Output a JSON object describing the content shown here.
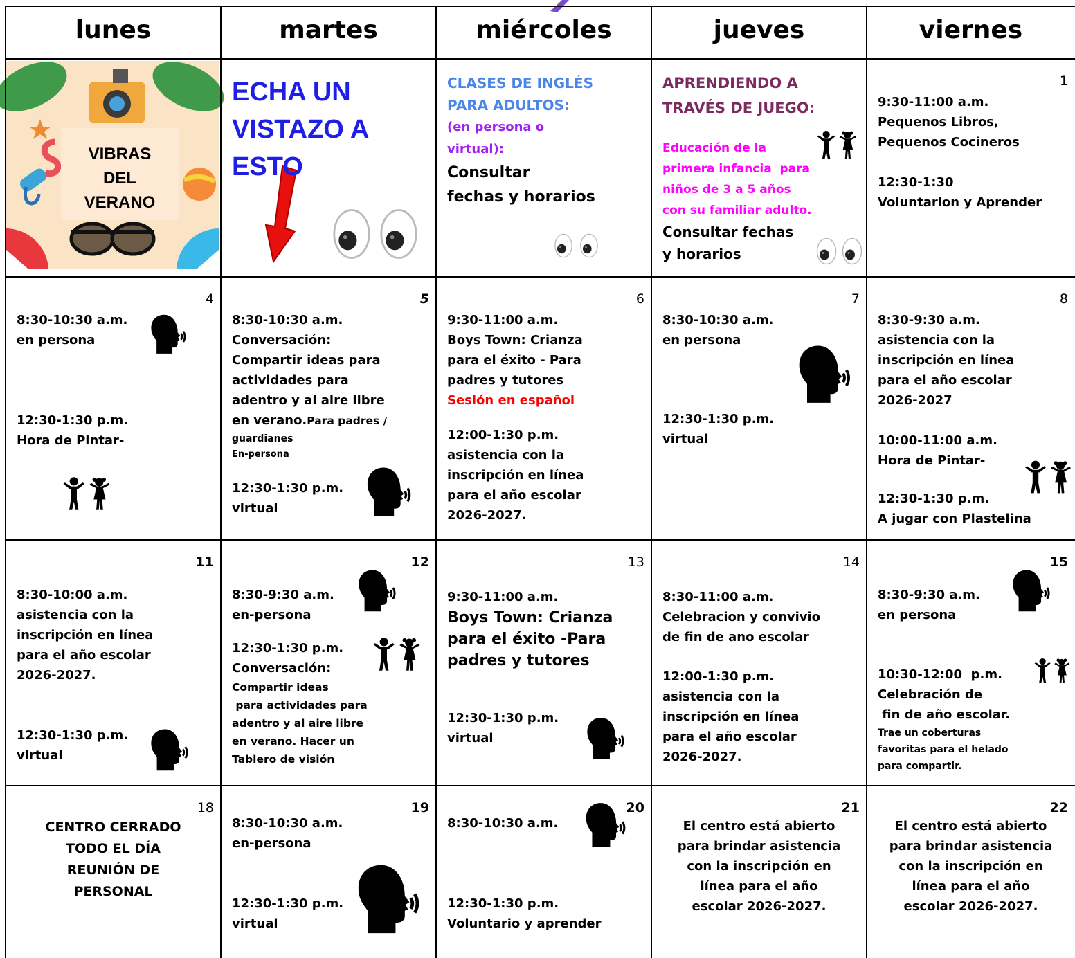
{
  "header": [
    "lunes",
    "martes",
    "miércoles",
    "jueves",
    "viernes"
  ],
  "weeks": [
    [
      {
        "lines": [
          "VIBRAS",
          "DEL",
          "VERANO"
        ]
      },
      {
        "lines": [
          "ECHA UN",
          "VISTAZO A",
          "ESTO"
        ]
      },
      {
        "lines": [
          "CLASES DE INGLÉS",
          "PARA ADULTOS:",
          "(en persona o",
          "virtual):",
          "Consultar",
          "fechas y horarios"
        ]
      },
      {
        "lines": [
          "APRENDIENDO A",
          "TRAVÉS DE JUEGO:",
          "Educación de la",
          "primera infancia  para",
          "niños de 3 a 5 años",
          "con su familiar adulto.",
          "Consultar fechas",
          "y horarios"
        ]
      },
      {
        "day": 1,
        "lines": [
          "9:30-11:00 a.m.",
          "Pequenos Libros,",
          "Pequenos Cocineros",
          "12:30-1:30",
          "Voluntarion y Aprender"
        ]
      }
    ],
    [
      {
        "day": 4,
        "lines": [
          "8:30-10:30 a.m.",
          "en persona",
          "12:30-1:30 p.m.",
          "Hora de Pintar-"
        ]
      },
      {
        "day": 5,
        "lines": [
          "8:30-10:30 a.m.",
          "Conversación:",
          "Compartir ideas para",
          "actividades para",
          "adentro y al aire libre",
          "en verano.",
          "Para padres /",
          "guardianes",
          "En-persona",
          "12:30-1:30 p.m.",
          "virtual"
        ]
      },
      {
        "day": 6,
        "lines": [
          "9:30-11:00 a.m.",
          "Boys Town: Crianza",
          "para el éxito - Para",
          "padres y tutores",
          "Sesión en español",
          "12:00-1:30 p.m.",
          "asistencia con la",
          "inscripción en línea",
          "para el año escolar",
          "2026-2027."
        ]
      },
      {
        "day": 7,
        "lines": [
          "8:30-10:30 a.m.",
          "en persona",
          "12:30-1:30 p.m.",
          "virtual"
        ]
      },
      {
        "day": 8,
        "lines": [
          "8:30-9:30 a.m.",
          "asistencia con la",
          "inscripción en línea",
          "para el año escolar",
          "2026-2027",
          "10:00-11:00 a.m.",
          "Hora de Pintar-",
          "12:30-1:30 p.m.",
          "A jugar con Plastelina"
        ]
      }
    ],
    [
      {
        "day": 11,
        "lines": [
          "8:30-10:00 a.m.",
          "asistencia con la",
          "inscripción en línea",
          "para el año escolar",
          "2026-2027.",
          "12:30-1:30 p.m.",
          "virtual"
        ]
      },
      {
        "day": 12,
        "lines": [
          "8:30-9:30 a.m.",
          "en-persona",
          "12:30-1:30 p.m.",
          "Conversación:",
          "Compartir ideas",
          " para actividades para",
          "adentro y al aire libre",
          "en verano. Hacer un",
          "Tablero de visión"
        ]
      },
      {
        "day": 13,
        "lines": [
          "9:30-11:00 a.m.",
          "Boys Town: Crianza",
          "para el éxito -Para",
          "padres y tutores",
          "12:30-1:30 p.m.",
          "virtual"
        ]
      },
      {
        "day": 14,
        "lines": [
          "8:30-11:00 a.m.",
          "Celebracion y convivio",
          "de fin de ano escolar",
          "12:00-1:30 p.m.",
          "asistencia con la",
          "inscripción en línea",
          "para el año escolar",
          "2026-2027."
        ]
      },
      {
        "day": 15,
        "lines": [
          "8:30-9:30 a.m.",
          "en persona",
          "10:30-12:00  p.m.",
          "Celebración de",
          " fin de año escolar.",
          "Trae un coberturas",
          "favoritas para el helado",
          "para compartir."
        ]
      }
    ],
    [
      {
        "day": 18,
        "lines": [
          "CENTRO CERRADO",
          "TODO EL DÍA",
          "REUNIÓN DE",
          "PERSONAL"
        ]
      },
      {
        "day": 19,
        "lines": [
          "8:30-10:30 a.m.",
          "en-persona",
          "12:30-1:30 p.m.",
          "virtual"
        ]
      },
      {
        "day": 20,
        "lines": [
          "8:30-10:30 a.m.",
          "12:30-1:30 p.m.",
          "Voluntario y aprender"
        ]
      },
      {
        "day": 21,
        "lines": [
          "El centro está abierto",
          "para brindar asistencia",
          "con la inscripción en",
          "línea para el año",
          "escolar 2026-2027."
        ]
      },
      {
        "day": 22,
        "lines": [
          "El centro está abierto",
          "para brindar asistencia",
          "con la inscripción en",
          "línea para el año",
          "escolar 2026-2027."
        ]
      }
    ]
  ]
}
